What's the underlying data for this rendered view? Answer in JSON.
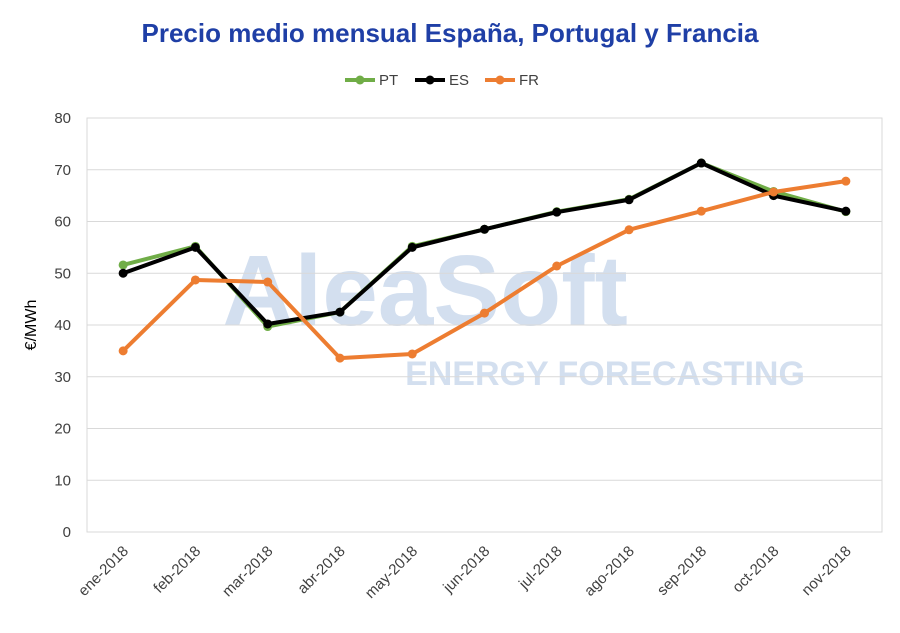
{
  "chart_data": {
    "type": "line",
    "title": "Precio medio mensual España, Portugal  y Francia",
    "y_label": "€/MWh",
    "watermark": [
      "AleaSoft",
      "ENERGY FORECASTING"
    ],
    "categories": [
      "ene-2018",
      "feb-2018",
      "mar-2018",
      "abr-2018",
      "may-2018",
      "jun-2018",
      "jul-2018",
      "ago-2018",
      "sep-2018",
      "oct-2018",
      "nov-2018"
    ],
    "series": [
      {
        "name": "PT",
        "color": "#70ad47",
        "values": [
          51.6,
          55.2,
          39.7,
          42.5,
          55.2,
          58.5,
          61.9,
          64.3,
          71.3,
          65.8,
          61.9
        ]
      },
      {
        "name": "ES",
        "color": "#000000",
        "values": [
          50.0,
          55.0,
          40.2,
          42.5,
          55.0,
          58.5,
          61.8,
          64.2,
          71.3,
          65.0,
          62.0
        ]
      },
      {
        "name": "FR",
        "color": "#ed7d31",
        "values": [
          35.0,
          48.7,
          48.3,
          33.6,
          34.4,
          42.3,
          51.4,
          58.4,
          62.0,
          65.7,
          67.8
        ]
      }
    ],
    "ylim": [
      0,
      80
    ],
    "yticks": [
      0,
      10,
      20,
      30,
      40,
      50,
      60,
      70,
      80
    ],
    "grid": true,
    "legend": "top"
  }
}
